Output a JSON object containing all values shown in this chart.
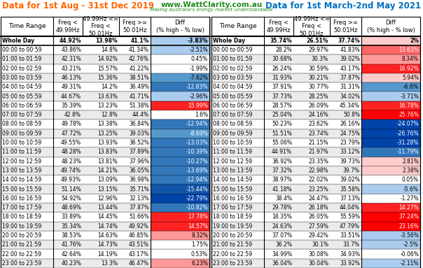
{
  "title_left": "Data for 1st Aug - 31st Dec 2019",
  "title_right": "Data for 1st March-2nd May 2021",
  "title_left_color": "#FF6600",
  "title_right_color": "#0070C0",
  "website": "www.WattClarity.com.au",
  "website_sub": "Making Australia's energy market understandable",
  "rows_2019": [
    [
      "Whole Day",
      "44.92%",
      "13.98%",
      "41.1%",
      "-3.83%",
      -3.83
    ],
    [
      "00:00 to 00:59",
      "43.86%",
      "14.8%",
      "41.34%",
      "-2.51%",
      -2.51
    ],
    [
      "01:00 to 01:59",
      "42.31%",
      "14.92%",
      "42.76%",
      "0.45%",
      0.45
    ],
    [
      "02:00 to 02:59",
      "43.21%",
      "15.57%",
      "41.22%",
      "-1.99%",
      -1.99
    ],
    [
      "03:00 to 03:59",
      "46.13%",
      "15.36%",
      "38.51%",
      "-7.62%",
      -7.62
    ],
    [
      "04:00 to 04:59",
      "49.31%",
      "14.2%",
      "36.49%",
      "-12.83%",
      -12.83
    ],
    [
      "05:00 to 05:59",
      "44.67%",
      "13.63%",
      "41.71%",
      "-2.96%",
      -2.96
    ],
    [
      "06:00 to 06:59",
      "35.39%",
      "13.23%",
      "51.38%",
      "15.99%",
      15.99
    ],
    [
      "07:00 to 07:59",
      "42.8%",
      "12.8%",
      "44.4%",
      "1.6%",
      1.6
    ],
    [
      "08:00 to 08:59",
      "49.78%",
      "13.38%",
      "36.84%",
      "-12.94%",
      -12.94
    ],
    [
      "09:00 to 09:59",
      "47.72%",
      "13.25%",
      "39.03%",
      "-8.69%",
      -8.69
    ],
    [
      "10:00 to 10:59",
      "49.55%",
      "13.93%",
      "36.52%",
      "-13.03%",
      -13.03
    ],
    [
      "11:00 to 11:59",
      "48.28%",
      "13.83%",
      "37.89%",
      "-10.39%",
      -10.39
    ],
    [
      "12:00 to 12:59",
      "48.23%",
      "13.81%",
      "37.96%",
      "-10.27%",
      -10.27
    ],
    [
      "13:00 to 13:59",
      "49.74%",
      "14.21%",
      "36.05%",
      "-13.69%",
      -13.69
    ],
    [
      "14:00 to 14:59",
      "49.93%",
      "13.09%",
      "36.98%",
      "-12.94%",
      -12.94
    ],
    [
      "15:00 to 15:59",
      "51.14%",
      "13.15%",
      "35.71%",
      "-15.44%",
      -15.44
    ],
    [
      "16:00 to 16:59",
      "54.92%",
      "12.96%",
      "32.13%",
      "-22.79%",
      -22.79
    ],
    [
      "17:00 to 17:59",
      "48.69%",
      "13.44%",
      "37.87%",
      "-10.82%",
      -10.82
    ],
    [
      "18:00 to 18:59",
      "33.89%",
      "14.45%",
      "51.66%",
      "17.78%",
      17.78
    ],
    [
      "19:00 to 19:59",
      "35.34%",
      "14.74%",
      "49.92%",
      "14.57%",
      14.57
    ],
    [
      "20:00 to 20:59",
      "38.53%",
      "14.63%",
      "46.85%",
      "8.32%",
      8.32
    ],
    [
      "21:00 to 21:59",
      "41.76%",
      "14.73%",
      "43.51%",
      "1.75%",
      1.75
    ],
    [
      "22:00 to 22:59",
      "42.64%",
      "14.19%",
      "43.17%",
      "0.53%",
      0.53
    ],
    [
      "23:00 to 23:59",
      "40.23%",
      "13.3%",
      "46.47%",
      "6.23%",
      6.23
    ]
  ],
  "rows_2021": [
    [
      "Whole Day",
      "35.74%",
      "26.51%",
      "37.74%",
      "2%",
      2.0
    ],
    [
      "00:00 to 00:59",
      "28.2%",
      "29.97%",
      "41.83%",
      "13.63%",
      13.63
    ],
    [
      "01:00 to 01:59",
      "30.68%",
      "30.3%",
      "39.02%",
      "8.34%",
      8.34
    ],
    [
      "02:00 to 02:59",
      "26.24%",
      "30.59%",
      "43.17%",
      "16.92%",
      16.92
    ],
    [
      "03:00 to 03:59",
      "31.93%",
      "30.21%",
      "37.87%",
      "5.94%",
      5.94
    ],
    [
      "04:00 to 04:59",
      "37.91%",
      "30.77%",
      "31.31%",
      "-6.6%",
      -6.6
    ],
    [
      "05:00 to 05:59",
      "37.73%",
      "28.25%",
      "34.02%",
      "-3.71%",
      -3.71
    ],
    [
      "06:00 to 06:59",
      "28.57%",
      "26.09%",
      "45.34%",
      "16.78%",
      16.78
    ],
    [
      "07:00 to 07:59",
      "25.04%",
      "24.16%",
      "50.8%",
      "25.76%",
      25.76
    ],
    [
      "08:00 to 08:59",
      "50.23%",
      "23.62%",
      "26.16%",
      "-24.07%",
      -24.07
    ],
    [
      "09:00 to 09:59",
      "51.51%",
      "23.74%",
      "24.75%",
      "-26.76%",
      -26.76
    ],
    [
      "10:00 to 10:59",
      "55.06%",
      "21.15%",
      "23.79%",
      "-31.28%",
      -31.28
    ],
    [
      "11:00 to 11:59",
      "44.91%",
      "21.97%",
      "33.12%",
      "-11.79%",
      -11.79
    ],
    [
      "12:00 to 12:59",
      "36.92%",
      "23.35%",
      "39.73%",
      "2.81%",
      2.81
    ],
    [
      "13:00 to 13:59",
      "37.32%",
      "22.98%",
      "39.7%",
      "2.38%",
      2.38
    ],
    [
      "14:00 to 14:59",
      "38.97%",
      "22.02%",
      "39.02%",
      "0.05%",
      0.05
    ],
    [
      "15:00 to 15:59",
      "41.18%",
      "23.25%",
      "35.58%",
      "-5.6%",
      -5.6
    ],
    [
      "16:00 to 16:59",
      "38.4%",
      "24.47%",
      "37.13%",
      "-1.27%",
      -1.27
    ],
    [
      "17:00 to 17:59",
      "29.78%",
      "26.18%",
      "44.04%",
      "14.27%",
      14.27
    ],
    [
      "18:00 to 18:59",
      "18.35%",
      "26.05%",
      "55.59%",
      "37.24%",
      37.24
    ],
    [
      "19:00 to 19:59",
      "24.63%",
      "27.59%",
      "47.79%",
      "23.16%",
      23.16
    ],
    [
      "20:00 to 20:59",
      "37.07%",
      "29.42%",
      "33.51%",
      "-3.56%",
      -3.56
    ],
    [
      "21:00 to 21:59",
      "36.2%",
      "30.1%",
      "33.7%",
      "-2.5%",
      -2.5
    ],
    [
      "22:00 to 22:59",
      "34.99%",
      "30.08%",
      "34.93%",
      "-0.06%",
      -0.06
    ],
    [
      "23:00 to 23:59",
      "36.04%",
      "30.04%",
      "33.92%",
      "-2.11%",
      -2.11
    ]
  ]
}
